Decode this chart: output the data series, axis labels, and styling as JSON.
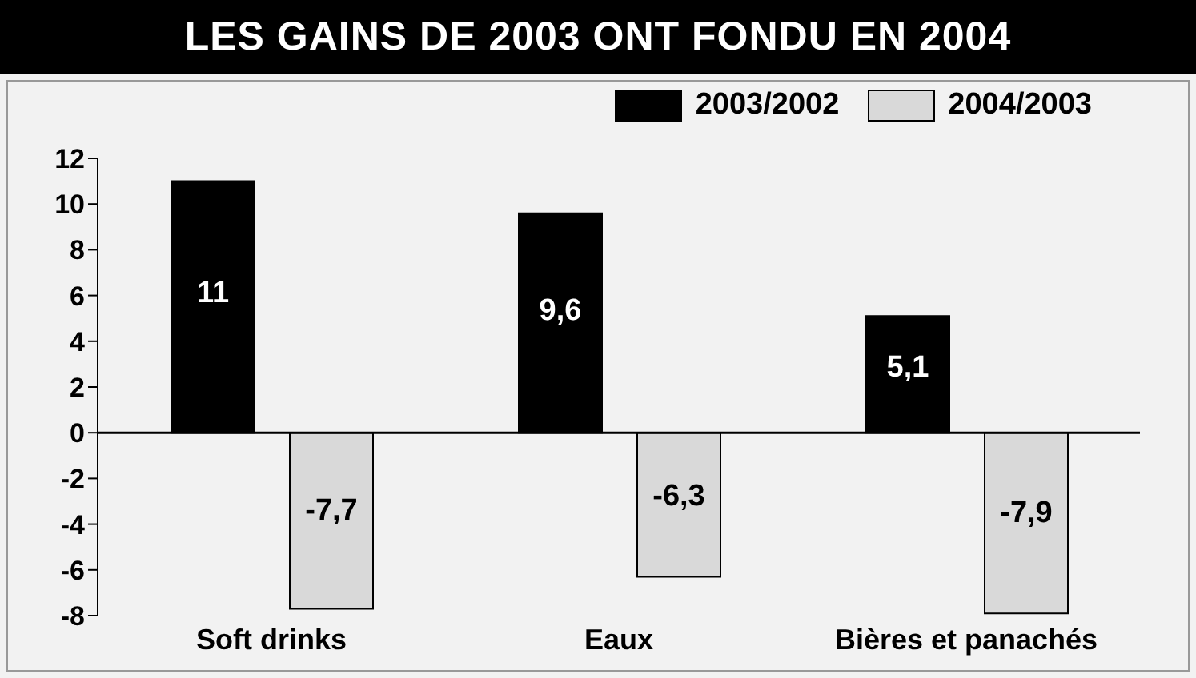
{
  "chart_data": {
    "type": "bar",
    "title": "LES GAINS DE 2003 ONT FONDU EN 2004",
    "categories": [
      "Soft drinks",
      "Eaux",
      "Bières et panachés"
    ],
    "series": [
      {
        "name": "2003/2002",
        "color": "#000000",
        "values": [
          11,
          9.6,
          5.1
        ],
        "value_labels": [
          "11",
          "9,6",
          "5,1"
        ]
      },
      {
        "name": "2004/2003",
        "color": "#d9d9d9",
        "values": [
          -7.7,
          -6.3,
          -7.9
        ],
        "value_labels": [
          "-7,7",
          "-6,3",
          "-7,9"
        ]
      }
    ],
    "ylim": [
      -8,
      12
    ],
    "yticks": [
      -8,
      -6,
      -4,
      -2,
      0,
      2,
      4,
      6,
      8,
      10,
      12
    ],
    "legend": "top right"
  }
}
